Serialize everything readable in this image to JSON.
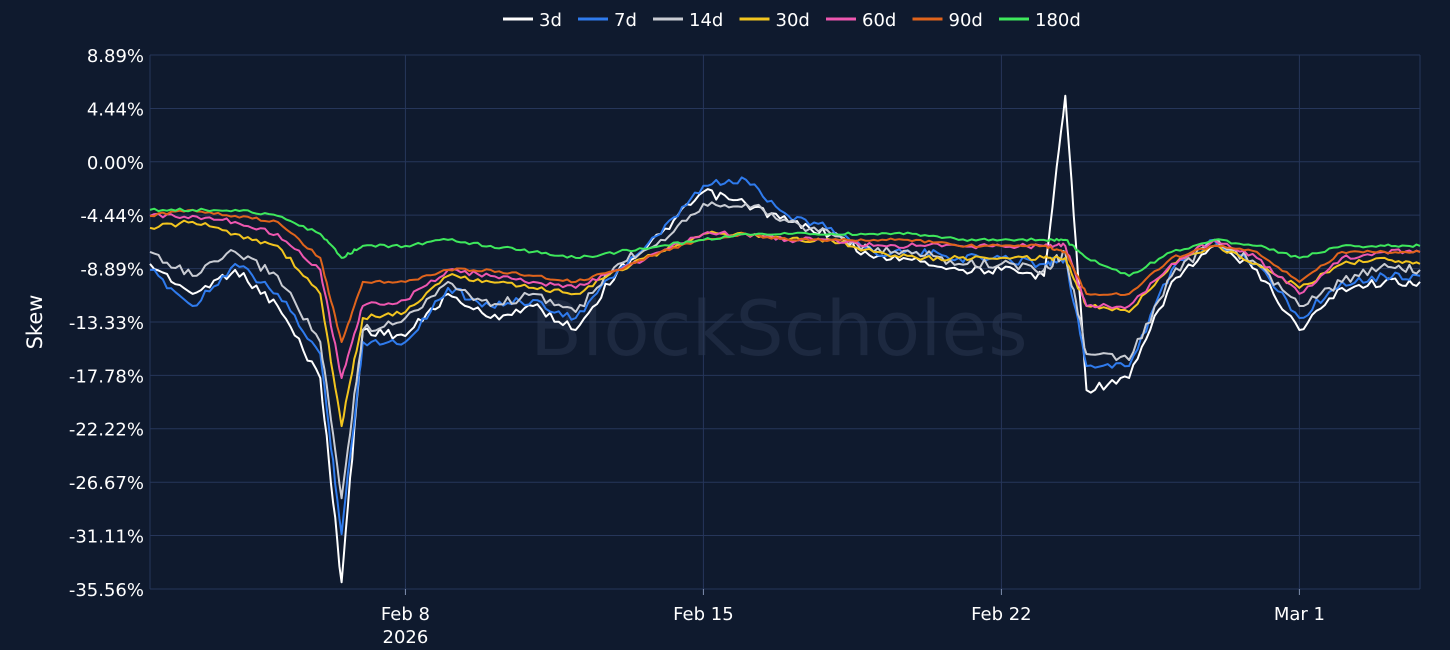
{
  "watermark": "BlockScholes",
  "chart_data": {
    "type": "line",
    "title": "",
    "xlabel": "",
    "ylabel": "Skew",
    "ylim": [
      -35.56,
      8.89
    ],
    "xlim": [
      "2026-02-02T00:00",
      "2026-03-03T20:00"
    ],
    "y_ticks": [
      "8.89%",
      "4.44%",
      "0.00%",
      "-4.44%",
      "-8.89%",
      "-13.33%",
      "-17.78%",
      "-22.22%",
      "-26.67%",
      "-31.11%",
      "-35.56%"
    ],
    "y_tick_values": [
      8.89,
      4.44,
      0,
      -4.44,
      -8.89,
      -13.33,
      -17.78,
      -22.22,
      -26.67,
      -31.11,
      -35.56
    ],
    "x_ticks": [
      {
        "date": "2026-02-08",
        "label": "Feb 8",
        "sublabel": "2026"
      },
      {
        "date": "2026-02-15",
        "label": "Feb 15",
        "sublabel": ""
      },
      {
        "date": "2026-02-22",
        "label": "Feb 22",
        "sublabel": ""
      },
      {
        "date": "2026-03-01",
        "label": "Mar 1",
        "sublabel": ""
      }
    ],
    "grid": true,
    "legend_position": "top-center",
    "x": [
      "2026-02-02T00:00",
      "2026-02-03T00:00",
      "2026-02-04T00:00",
      "2026-02-05T00:00",
      "2026-02-06T00:00",
      "2026-02-06T12:00",
      "2026-02-07T00:00",
      "2026-02-08T00:00",
      "2026-02-09T00:00",
      "2026-02-10T00:00",
      "2026-02-11T00:00",
      "2026-02-12T00:00",
      "2026-02-13T00:00",
      "2026-02-14T00:00",
      "2026-02-15T00:00",
      "2026-02-16T00:00",
      "2026-02-17T00:00",
      "2026-02-18T00:00",
      "2026-02-19T00:00",
      "2026-02-20T00:00",
      "2026-02-21T00:00",
      "2026-02-22T00:00",
      "2026-02-23T00:00",
      "2026-02-23T12:00",
      "2026-02-24T00:00",
      "2026-02-25T00:00",
      "2026-02-26T00:00",
      "2026-02-27T00:00",
      "2026-02-28T00:00",
      "2026-03-01T00:00",
      "2026-03-02T00:00",
      "2026-03-03T00:00",
      "2026-03-03T20:00"
    ],
    "series": [
      {
        "name": "3d",
        "color": "#ffffff",
        "values": [
          -8.5,
          -11.0,
          -9.0,
          -12.0,
          -18.0,
          -35.0,
          -14.0,
          -14.5,
          -11.0,
          -13.0,
          -12.0,
          -14.0,
          -9.0,
          -6.0,
          -2.5,
          -3.5,
          -5.0,
          -6.0,
          -8.0,
          -8.0,
          -9.0,
          -9.0,
          -9.5,
          5.5,
          -19.0,
          -18.0,
          -10.0,
          -7.0,
          -9.0,
          -14.0,
          -10.5,
          -10.0,
          -10.0
        ]
      },
      {
        "name": "7d",
        "color": "#2f7bed",
        "values": [
          -9.0,
          -12.0,
          -8.5,
          -11.0,
          -16.0,
          -31.0,
          -15.0,
          -15.0,
          -10.5,
          -12.0,
          -11.5,
          -13.0,
          -9.0,
          -6.0,
          -2.0,
          -1.5,
          -4.5,
          -5.5,
          -7.5,
          -7.5,
          -8.0,
          -8.0,
          -8.5,
          -8.0,
          -17.0,
          -17.0,
          -9.0,
          -6.5,
          -8.5,
          -13.0,
          -10.0,
          -9.5,
          -9.5
        ]
      },
      {
        "name": "14d",
        "color": "#c9ccd3",
        "values": [
          -7.5,
          -9.5,
          -7.5,
          -9.5,
          -15.0,
          -28.0,
          -14.0,
          -13.0,
          -10.0,
          -12.0,
          -11.0,
          -12.5,
          -8.5,
          -6.5,
          -3.5,
          -3.5,
          -5.0,
          -6.0,
          -7.5,
          -7.5,
          -8.5,
          -8.5,
          -9.0,
          -7.5,
          -16.0,
          -16.5,
          -9.5,
          -6.5,
          -8.5,
          -12.0,
          -10.0,
          -8.5,
          -9.0
        ]
      },
      {
        "name": "30d",
        "color": "#f2c51f",
        "values": [
          -5.5,
          -5.0,
          -6.0,
          -7.0,
          -11.0,
          -22.0,
          -13.0,
          -12.5,
          -9.5,
          -10.0,
          -10.5,
          -11.0,
          -9.0,
          -7.5,
          -6.0,
          -6.0,
          -6.5,
          -6.5,
          -7.5,
          -8.0,
          -8.0,
          -8.0,
          -8.0,
          -8.0,
          -12.0,
          -12.5,
          -8.5,
          -7.0,
          -8.5,
          -10.5,
          -8.5,
          -8.0,
          -8.5
        ]
      },
      {
        "name": "60d",
        "color": "#ee57b0",
        "values": [
          -4.5,
          -4.5,
          -5.0,
          -6.0,
          -9.0,
          -18.0,
          -12.0,
          -11.5,
          -9.0,
          -9.5,
          -10.0,
          -10.5,
          -9.0,
          -7.5,
          -6.0,
          -6.0,
          -6.5,
          -6.5,
          -7.0,
          -7.0,
          -7.0,
          -7.0,
          -7.0,
          -7.0,
          -12.0,
          -12.0,
          -8.5,
          -6.5,
          -8.0,
          -11.0,
          -8.0,
          -7.5,
          -7.5
        ]
      },
      {
        "name": "90d",
        "color": "#e0641c",
        "values": [
          -4.5,
          -4.0,
          -4.5,
          -5.0,
          -8.0,
          -15.0,
          -10.0,
          -10.0,
          -9.0,
          -9.0,
          -9.5,
          -10.0,
          -9.0,
          -7.5,
          -6.5,
          -6.0,
          -6.5,
          -6.5,
          -6.5,
          -6.5,
          -7.0,
          -7.0,
          -7.0,
          -7.5,
          -11.0,
          -11.0,
          -8.0,
          -7.0,
          -7.5,
          -10.0,
          -7.5,
          -7.5,
          -7.5
        ]
      },
      {
        "name": "180d",
        "color": "#3ee85c",
        "values": [
          -4.0,
          -4.0,
          -4.0,
          -4.5,
          -6.0,
          -8.0,
          -7.0,
          -7.0,
          -6.5,
          -7.0,
          -7.5,
          -8.0,
          -7.5,
          -7.0,
          -6.5,
          -6.0,
          -6.0,
          -6.0,
          -6.0,
          -6.0,
          -6.5,
          -6.5,
          -6.5,
          -6.5,
          -8.0,
          -9.5,
          -7.5,
          -6.5,
          -7.0,
          -8.0,
          -7.0,
          -7.0,
          -7.0
        ]
      }
    ]
  }
}
